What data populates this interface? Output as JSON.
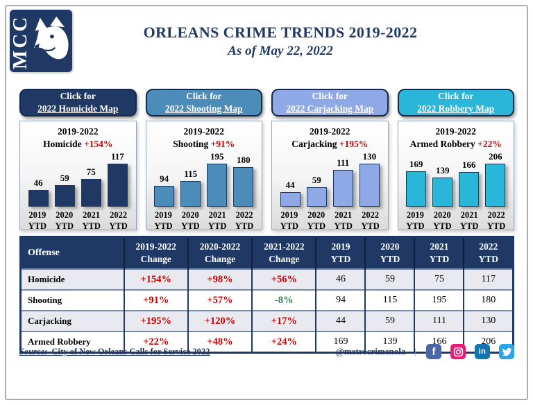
{
  "header": {
    "logo_text": "MCC",
    "title": "ORLEANS CRIME TRENDS 2019-2022",
    "subtitle": "As of May 22, 2022"
  },
  "colors": {
    "navy": "#1F3864",
    "red": "#CC0000",
    "green": "#2E8048",
    "steel_blue": "#4C8CB8",
    "periwinkle": "#8FA8E6",
    "cyan": "#29B6D8",
    "row_alt_gray": "#E9EAEF"
  },
  "panels": [
    {
      "button_line1": "Click for",
      "button_line2": "2022 Homicide Map",
      "button_color": "#1F3864",
      "chart_year_range": "2019-2022",
      "chart_label": "Homicide",
      "chart_change": "+154%",
      "bar_color": "#1F3864",
      "bar_border": "#1F3864",
      "years": [
        "2019",
        "2020",
        "2021",
        "2022"
      ],
      "ytd_label": "YTD",
      "values": [
        46,
        59,
        75,
        117
      ]
    },
    {
      "button_line1": "Click for",
      "button_line2": "2022 Shooting Map",
      "button_color": "#4C8CB8",
      "chart_year_range": "2019-2022",
      "chart_label": "Shooting",
      "chart_change": "+91%",
      "bar_color": "#4C8CB8",
      "bar_border": "#17375E",
      "years": [
        "2019",
        "2020",
        "2021",
        "2022"
      ],
      "ytd_label": "YTD",
      "values": [
        94,
        115,
        195,
        180
      ]
    },
    {
      "button_line1": "Click for",
      "button_line2": "2022 Carjacking Map",
      "button_color": "#8FA8E6",
      "chart_year_range": "2019-2022",
      "chart_label": "Carjacking",
      "chart_change": "+195%",
      "bar_color": "#8FA8E6",
      "bar_border": "#17375E",
      "years": [
        "2019",
        "2020",
        "2021",
        "2022"
      ],
      "ytd_label": "YTD",
      "values": [
        44,
        59,
        111,
        130
      ]
    },
    {
      "button_line1": "Click for",
      "button_line2": "2022 Robbery Map",
      "button_color": "#29B6D8",
      "chart_year_range": "2019-2022",
      "chart_label": "Armed Robbery",
      "chart_change": "+22%",
      "bar_color": "#29B6D8",
      "bar_border": "#17375E",
      "years": [
        "2019",
        "2020",
        "2021",
        "2022"
      ],
      "ytd_label": "YTD",
      "values": [
        169,
        139,
        166,
        206
      ]
    }
  ],
  "table": {
    "headers": [
      {
        "line1": "Offense",
        "line2": ""
      },
      {
        "line1": "2019-2022",
        "line2": "Change"
      },
      {
        "line1": "2020-2022",
        "line2": "Change"
      },
      {
        "line1": "2021-2022",
        "line2": "Change"
      },
      {
        "line1": "2019",
        "line2": "YTD"
      },
      {
        "line1": "2020",
        "line2": "YTD"
      },
      {
        "line1": "2021",
        "line2": "YTD"
      },
      {
        "line1": "2022",
        "line2": "YTD"
      }
    ],
    "rows": [
      {
        "offense": "Homicide",
        "changes": [
          "+154%",
          "+98%",
          "+56%"
        ],
        "ytd": [
          46,
          59,
          75,
          117
        ]
      },
      {
        "offense": "Shooting",
        "changes": [
          "+91%",
          "+57%",
          "-8%"
        ],
        "ytd": [
          94,
          115,
          195,
          180
        ]
      },
      {
        "offense": "Carjacking",
        "changes": [
          "+195%",
          "+120%",
          "+17%"
        ],
        "ytd": [
          44,
          59,
          111,
          130
        ]
      },
      {
        "offense": "Armed Robbery",
        "changes": [
          "+22%",
          "+48%",
          "+24%"
        ],
        "ytd": [
          169,
          139,
          166,
          206
        ]
      }
    ]
  },
  "footer": {
    "source_label": "Source:",
    "source_text": "City of New Orleans Calls for Service 2022",
    "handle": "@metrocrimenola",
    "separator": "|",
    "social_icons": [
      {
        "name": "facebook-icon",
        "color": "#4A66A4",
        "glyph": "f"
      },
      {
        "name": "instagram-icon",
        "color": "#EC1A74",
        "glyph": "camera"
      },
      {
        "name": "linkedin-icon",
        "color": "#1276B2",
        "glyph": "in"
      },
      {
        "name": "twitter-icon",
        "color": "#2CA4EC",
        "glyph": "bird"
      }
    ]
  },
  "chart_data": [
    {
      "type": "bar",
      "title": "2019-2022 Homicide +154%",
      "categories": [
        "2019 YTD",
        "2020 YTD",
        "2021 YTD",
        "2022 YTD"
      ],
      "values": [
        46,
        59,
        75,
        117
      ],
      "bar_color": "#1F3864",
      "data_labels": true,
      "ylim": [
        0,
        117
      ]
    },
    {
      "type": "bar",
      "title": "2019-2022 Shooting +91%",
      "categories": [
        "2019 YTD",
        "2020 YTD",
        "2021 YTD",
        "2022 YTD"
      ],
      "values": [
        94,
        115,
        195,
        180
      ],
      "bar_color": "#4C8CB8",
      "data_labels": true,
      "ylim": [
        0,
        195
      ]
    },
    {
      "type": "bar",
      "title": "2019-2022 Carjacking +195%",
      "categories": [
        "2019 YTD",
        "2020 YTD",
        "2021 YTD",
        "2022 YTD"
      ],
      "values": [
        44,
        59,
        111,
        130
      ],
      "bar_color": "#8FA8E6",
      "data_labels": true,
      "ylim": [
        0,
        130
      ]
    },
    {
      "type": "bar",
      "title": "2019-2022 Armed Robbery +22%",
      "categories": [
        "2019 YTD",
        "2020 YTD",
        "2021 YTD",
        "2022 YTD"
      ],
      "values": [
        169,
        139,
        166,
        206
      ],
      "bar_color": "#29B6D8",
      "data_labels": true,
      "ylim": [
        0,
        206
      ]
    }
  ]
}
